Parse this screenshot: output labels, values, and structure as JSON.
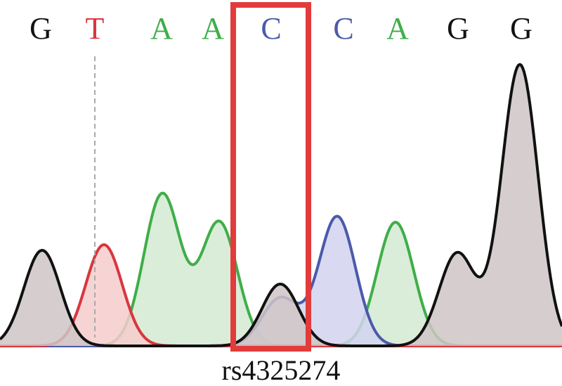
{
  "chart_data": {
    "type": "area",
    "snp_label": "rs4325274",
    "bases": [
      {
        "base": "G",
        "color": "#111111"
      },
      {
        "base": "T",
        "color": "#d9363e"
      },
      {
        "base": "A",
        "color": "#3fae49"
      },
      {
        "base": "A",
        "color": "#3fae49"
      },
      {
        "base": "C",
        "color": "#4a5aab"
      },
      {
        "base": "C",
        "color": "#4a5aab"
      },
      {
        "base": "A",
        "color": "#3fae49"
      },
      {
        "base": "G",
        "color": "#111111"
      },
      {
        "base": "G",
        "color": "#111111"
      }
    ],
    "highlighted_base_index": 4,
    "highlight_color": "#e23b3b",
    "series": [
      {
        "base": "G",
        "color": "#111111",
        "fill": "#cfc6c6",
        "peaks": [
          {
            "position": 0,
            "height": 0.34
          },
          {
            "position": 4,
            "height": 0.22
          },
          {
            "position": 7,
            "height": 0.33
          },
          {
            "position": 8,
            "height": 1.0
          }
        ]
      },
      {
        "base": "T",
        "color": "#d9363e",
        "fill": "#f6cccc",
        "peaks": [
          {
            "position": 1,
            "height": 0.36
          }
        ]
      },
      {
        "base": "A",
        "color": "#3fae49",
        "fill": "#d3ead2",
        "peaks": [
          {
            "position": 2,
            "height": 0.54
          },
          {
            "position": 3,
            "height": 0.44
          },
          {
            "position": 6,
            "height": 0.44
          }
        ]
      },
      {
        "base": "C",
        "color": "#4a5aab",
        "fill": "#d2d3ee",
        "peaks": [
          {
            "position": 4,
            "height": 0.17
          },
          {
            "position": 5,
            "height": 0.46
          }
        ]
      }
    ]
  }
}
